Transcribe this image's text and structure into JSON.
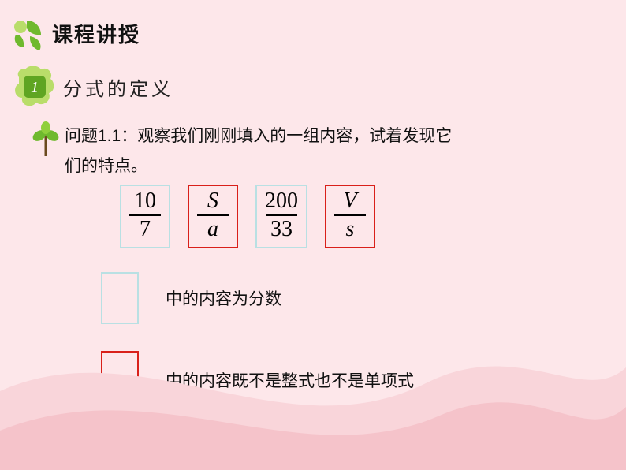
{
  "colors": {
    "page_bg": "#fde7ea",
    "blue_border": "#b9e0e3",
    "red_border": "#d9201a",
    "leaf_green": "#6fb92e",
    "badge_green": "#5fa522",
    "badge_light": "#b9dd6a",
    "wave1": "#f9d5da",
    "wave2": "#f5c3ca"
  },
  "header": {
    "title": "课程讲授",
    "logo_alt": "leaf-logo"
  },
  "section": {
    "number": "1",
    "title": "分式的定义"
  },
  "question": {
    "prefix": "问题1.1：",
    "body_line1": "观察我们刚刚填入的一组内容，试着发现它",
    "body_line2": "们的特点。"
  },
  "fractions": [
    {
      "num": "10",
      "den": "7",
      "border": "blue",
      "num_italic": false,
      "den_italic": false
    },
    {
      "num": "S",
      "den": "a",
      "border": "red",
      "num_italic": true,
      "den_italic": true
    },
    {
      "num": "200",
      "den": "33",
      "border": "blue",
      "num_italic": false,
      "den_italic": false
    },
    {
      "num": "V",
      "den": "s",
      "border": "red",
      "num_italic": true,
      "den_italic": true
    }
  ],
  "legend": [
    {
      "border": "blue",
      "text": "中的内容为分数"
    },
    {
      "border": "red",
      "text": "中的内容既不是整式也不是单项式"
    }
  ],
  "typography": {
    "title_fontsize": 26,
    "section_fontsize": 24,
    "body_fontsize": 21,
    "fraction_fontsize": 28
  }
}
